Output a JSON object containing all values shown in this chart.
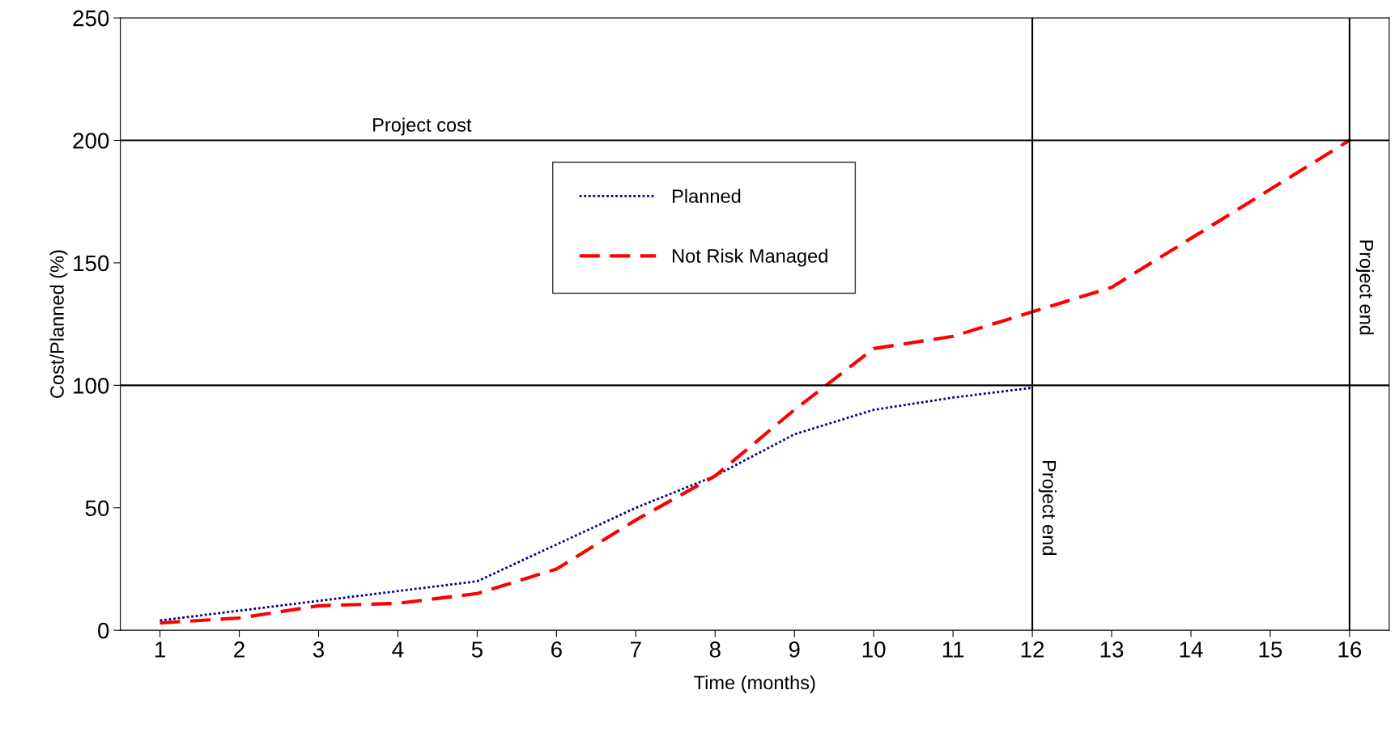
{
  "chart_data": {
    "type": "line",
    "xlabel": "Time (months)",
    "ylabel": "Cost/Planned (%)",
    "x": [
      1,
      2,
      3,
      4,
      5,
      6,
      7,
      8,
      9,
      10,
      11,
      12,
      13,
      14,
      15,
      16
    ],
    "xlim": [
      0.5,
      16.5
    ],
    "xticks": [
      1,
      2,
      3,
      4,
      5,
      6,
      7,
      8,
      9,
      10,
      11,
      12,
      13,
      14,
      15,
      16
    ],
    "ylim": [
      0,
      250
    ],
    "yticks": [
      0,
      50,
      100,
      150,
      200,
      250
    ],
    "series": [
      {
        "name": "Planned",
        "color": "#000080",
        "line_style": "dotted",
        "values": [
          4,
          8,
          12,
          16,
          20,
          35,
          50,
          63,
          80,
          90,
          95,
          99,
          null,
          null,
          null,
          null
        ]
      },
      {
        "name": "Not Risk Managed",
        "color": "#ff0000",
        "line_style": "dashed",
        "values": [
          3,
          5,
          10,
          11,
          15,
          25,
          45,
          63,
          90,
          115,
          120,
          130,
          140,
          160,
          180,
          200
        ]
      }
    ],
    "ref_lines": [
      {
        "axis": "y",
        "value": 200,
        "label": "Project cost",
        "color": "#000000"
      },
      {
        "axis": "y",
        "value": 100,
        "color": "#000000"
      },
      {
        "axis": "x",
        "value": 12,
        "label": "Project end",
        "color": "#000000"
      },
      {
        "axis": "x",
        "value": 16,
        "label": "Project end",
        "color": "#000000"
      }
    ],
    "legend": "top",
    "grid": false,
    "marker": "none"
  }
}
